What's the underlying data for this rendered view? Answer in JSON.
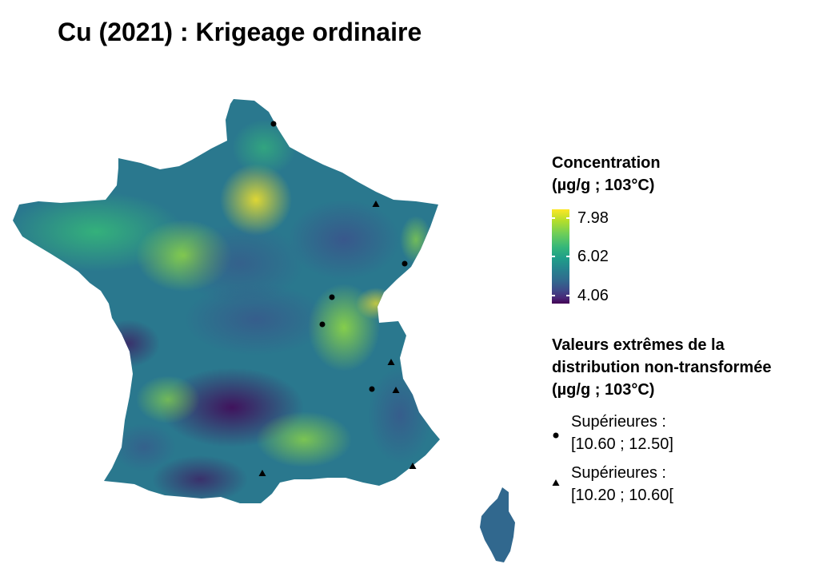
{
  "title": "Cu (2021) : Krigeage ordinaire",
  "legend_concentration": {
    "title_line1": "Concentration",
    "title_line2": "(µg/g ; 103°C)",
    "ticks": [
      "7.98",
      "6.02",
      "4.06"
    ],
    "max": 7.98,
    "mid": 6.02,
    "min": 4.06,
    "palette": "viridis"
  },
  "legend_extremes": {
    "title_line1": "Valeurs extrêmes de la",
    "title_line2": "distribution non-transformée",
    "title_line3": "(µg/g ; 103°C)",
    "items": [
      {
        "symbol": "circle-icon",
        "line1": "Supérieures :",
        "line2": "[10.60 ; 12.50]"
      },
      {
        "symbol": "triangle-icon",
        "line1": "Supérieures :",
        "line2": "[10.20 ; 10.60["
      }
    ]
  },
  "colors": {
    "viridis_low": "#440154",
    "viridis_mid": "#21908d",
    "viridis_high": "#fde725"
  }
}
